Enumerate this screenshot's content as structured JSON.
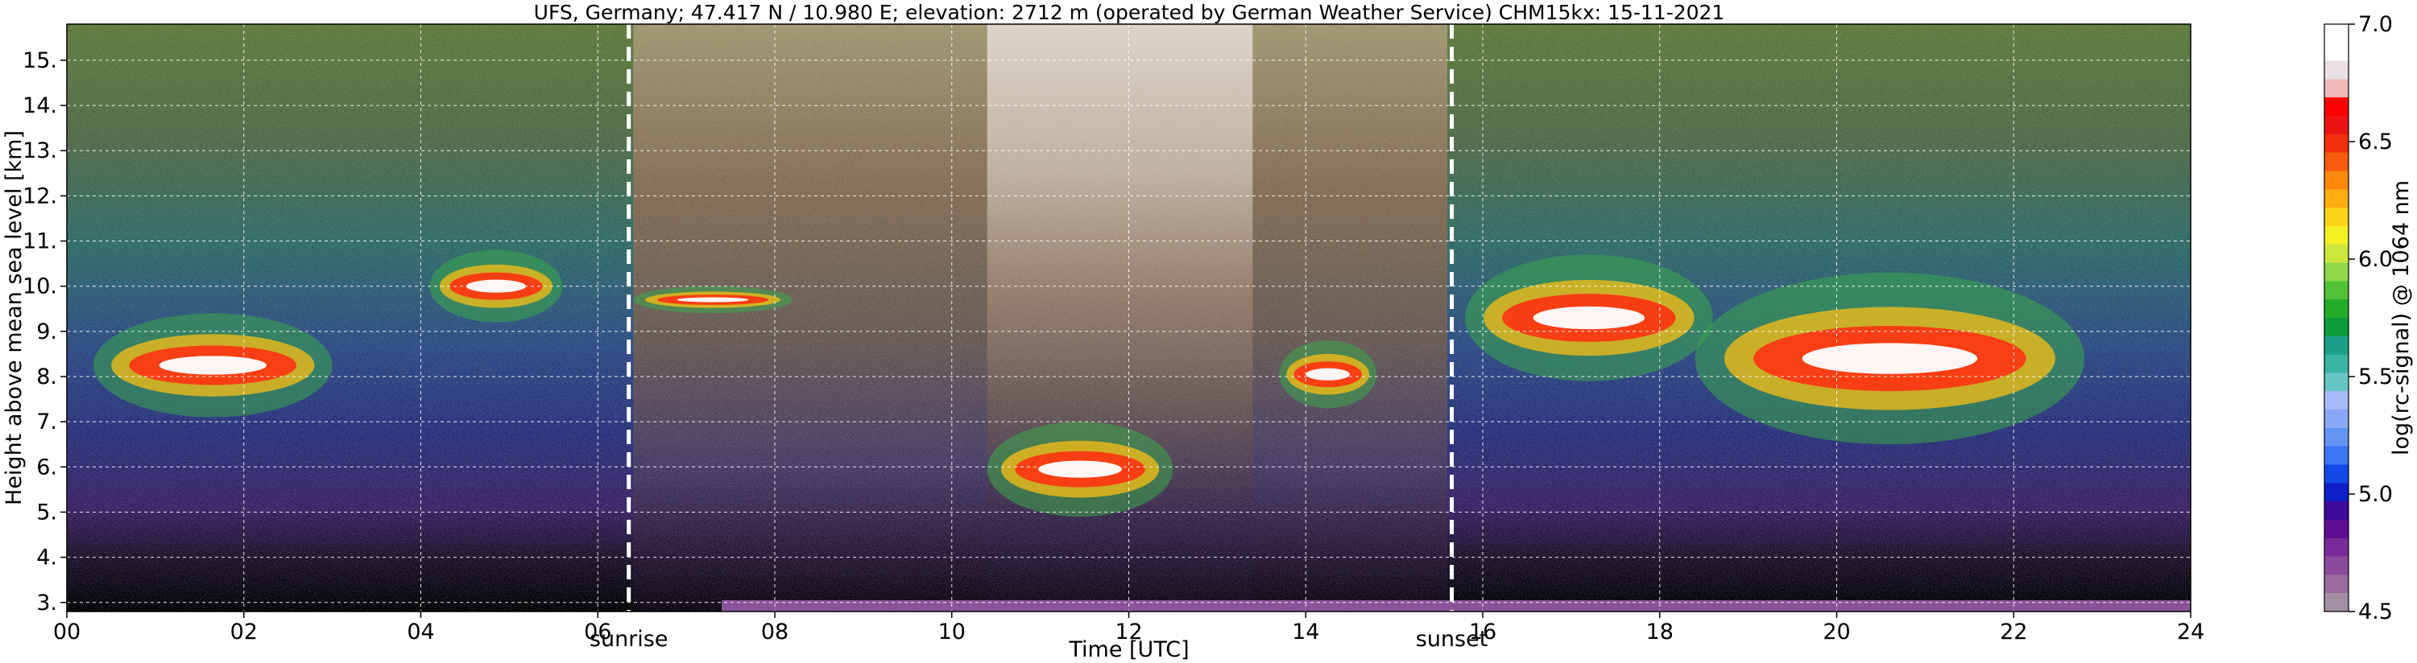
{
  "chart_data": {
    "type": "heatmap",
    "title": "UFS, Germany; 47.417 N / 10.980 E; elevation: 2712 m  (operated by German Weather Service)     CHM15kx: 15-11-2021",
    "xlabel": "Time [UTC]",
    "ylabel": "Height above mean sea level [km]",
    "xlim": [
      0,
      24
    ],
    "ylim": [
      2.8,
      15.8
    ],
    "x_ticks": [
      "00",
      "02",
      "04",
      "06",
      "08",
      "10",
      "12",
      "14",
      "16",
      "18",
      "20",
      "22",
      "24"
    ],
    "y_ticks": [
      "3.",
      "4.",
      "5.",
      "6.",
      "7.",
      "8.",
      "9.",
      "10.",
      "11.",
      "12.",
      "13.",
      "14.",
      "15."
    ],
    "grid": true,
    "colorbar": {
      "label": "log(rc-signal) @ 1064 nm",
      "range": [
        4.5,
        7.0
      ],
      "ticks": [
        "4.5",
        "5.0",
        "5.5",
        "6.0",
        "6.5",
        "7.0"
      ],
      "colors": [
        "#a38fa3",
        "#9a6c9f",
        "#8b4a9b",
        "#7a2a98",
        "#5f0e92",
        "#3e0a9a",
        "#1020c8",
        "#1448e6",
        "#3a74f0",
        "#6494f4",
        "#88a8f6",
        "#a6baf7",
        "#66c6c6",
        "#3ab4a4",
        "#1aa088",
        "#0c9b3a",
        "#24ad2a",
        "#52c338",
        "#8cd848",
        "#cde63c",
        "#f2f020",
        "#fbd418",
        "#fcae10",
        "#fb8a0c",
        "#f85c0c",
        "#f2300c",
        "#ea1414",
        "#ff0000",
        "#f0b8b8",
        "#e8e0e4",
        "#ffffff",
        "#ffffff"
      ]
    },
    "vertical_markers": [
      {
        "label": "sunrise",
        "x": 6.35
      },
      {
        "label": "sunset",
        "x": 15.65
      }
    ],
    "features": [
      {
        "kind": "cloud",
        "time": [
          0.3,
          3.0
        ],
        "height": [
          7.1,
          9.4
        ],
        "level": "5.8-6.2"
      },
      {
        "kind": "cloud",
        "time": [
          4.1,
          5.6
        ],
        "height": [
          9.2,
          10.8
        ],
        "level": "5.9-6.4"
      },
      {
        "kind": "cloud",
        "time": [
          6.4,
          8.2
        ],
        "height": [
          9.4,
          10.0
        ],
        "level": "6.5-7.0"
      },
      {
        "kind": "cloud",
        "time": [
          10.4,
          12.5
        ],
        "height": [
          4.9,
          7.0
        ],
        "level": "6.5-7.0"
      },
      {
        "kind": "cloud",
        "time": [
          13.7,
          14.8
        ],
        "height": [
          7.3,
          8.8
        ],
        "level": "6.5-7.0"
      },
      {
        "kind": "cloud",
        "time": [
          15.8,
          18.6
        ],
        "height": [
          7.9,
          10.7
        ],
        "level": "6.3-7.0"
      },
      {
        "kind": "cloud",
        "time": [
          18.4,
          22.8
        ],
        "height": [
          6.5,
          10.3
        ],
        "level": "6.2-7.0"
      }
    ]
  }
}
